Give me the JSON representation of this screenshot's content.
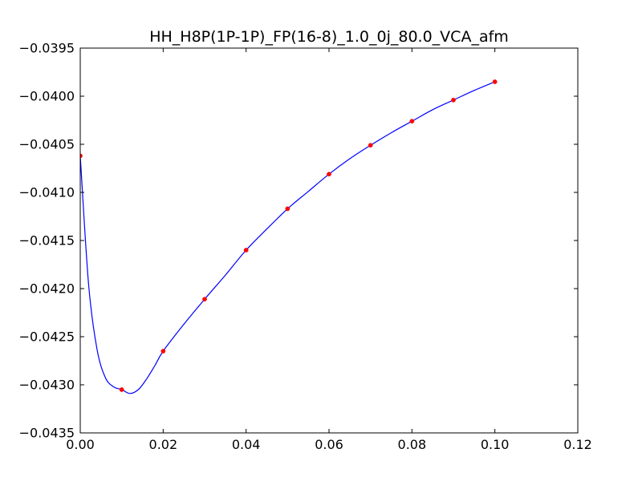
{
  "chart_data": {
    "type": "line",
    "title": "HH_H8P(1P-1P)_FP(16-8)_1.0_0j_80.0_VCA_afm",
    "xlabel": "",
    "ylabel": "",
    "xlim": [
      0.0,
      0.12
    ],
    "ylim": [
      -0.0435,
      -0.0395
    ],
    "x_ticks": [
      0.0,
      0.02,
      0.04,
      0.06,
      0.08,
      0.1,
      0.12
    ],
    "x_tick_labels": [
      "0.00",
      "0.02",
      "0.04",
      "0.06",
      "0.08",
      "0.10",
      "0.12"
    ],
    "y_ticks": [
      -0.0435,
      -0.043,
      -0.0425,
      -0.042,
      -0.0415,
      -0.041,
      -0.0405,
      -0.04,
      -0.0395
    ],
    "y_tick_labels": [
      "−0.0435",
      "−0.0430",
      "−0.0425",
      "−0.0420",
      "−0.0415",
      "−0.0410",
      "−0.0405",
      "−0.0400",
      "−0.0395"
    ],
    "grid": false,
    "legend": "none",
    "series": [
      {
        "style": "markers",
        "color": "#ff0000",
        "x": [
          0.0,
          0.01,
          0.02,
          0.03,
          0.04,
          0.05,
          0.06,
          0.07,
          0.08,
          0.09,
          0.1
        ],
        "y": [
          -0.04062,
          -0.04305,
          -0.04265,
          -0.04211,
          -0.0416,
          -0.04117,
          -0.04081,
          -0.04051,
          -0.04026,
          -0.04004,
          -0.03985
        ]
      },
      {
        "style": "line",
        "color": "#0000ff",
        "x": [
          0.0,
          0.002,
          0.004,
          0.006,
          0.008,
          0.01,
          0.012,
          0.014,
          0.016,
          0.018,
          0.02,
          0.025,
          0.03,
          0.035,
          0.04,
          0.045,
          0.05,
          0.055,
          0.06,
          0.065,
          0.07,
          0.075,
          0.08,
          0.085,
          0.09,
          0.095,
          0.1
        ],
        "y": [
          -0.04062,
          -0.04195,
          -0.04262,
          -0.04292,
          -0.04302,
          -0.04305,
          -0.04309,
          -0.04305,
          -0.04294,
          -0.0428,
          -0.04265,
          -0.04237,
          -0.04211,
          -0.04186,
          -0.0416,
          -0.04138,
          -0.04117,
          -0.04099,
          -0.04081,
          -0.04065,
          -0.04051,
          -0.04038,
          -0.04026,
          -0.04014,
          -0.04004,
          -0.03994,
          -0.03985
        ]
      }
    ]
  }
}
